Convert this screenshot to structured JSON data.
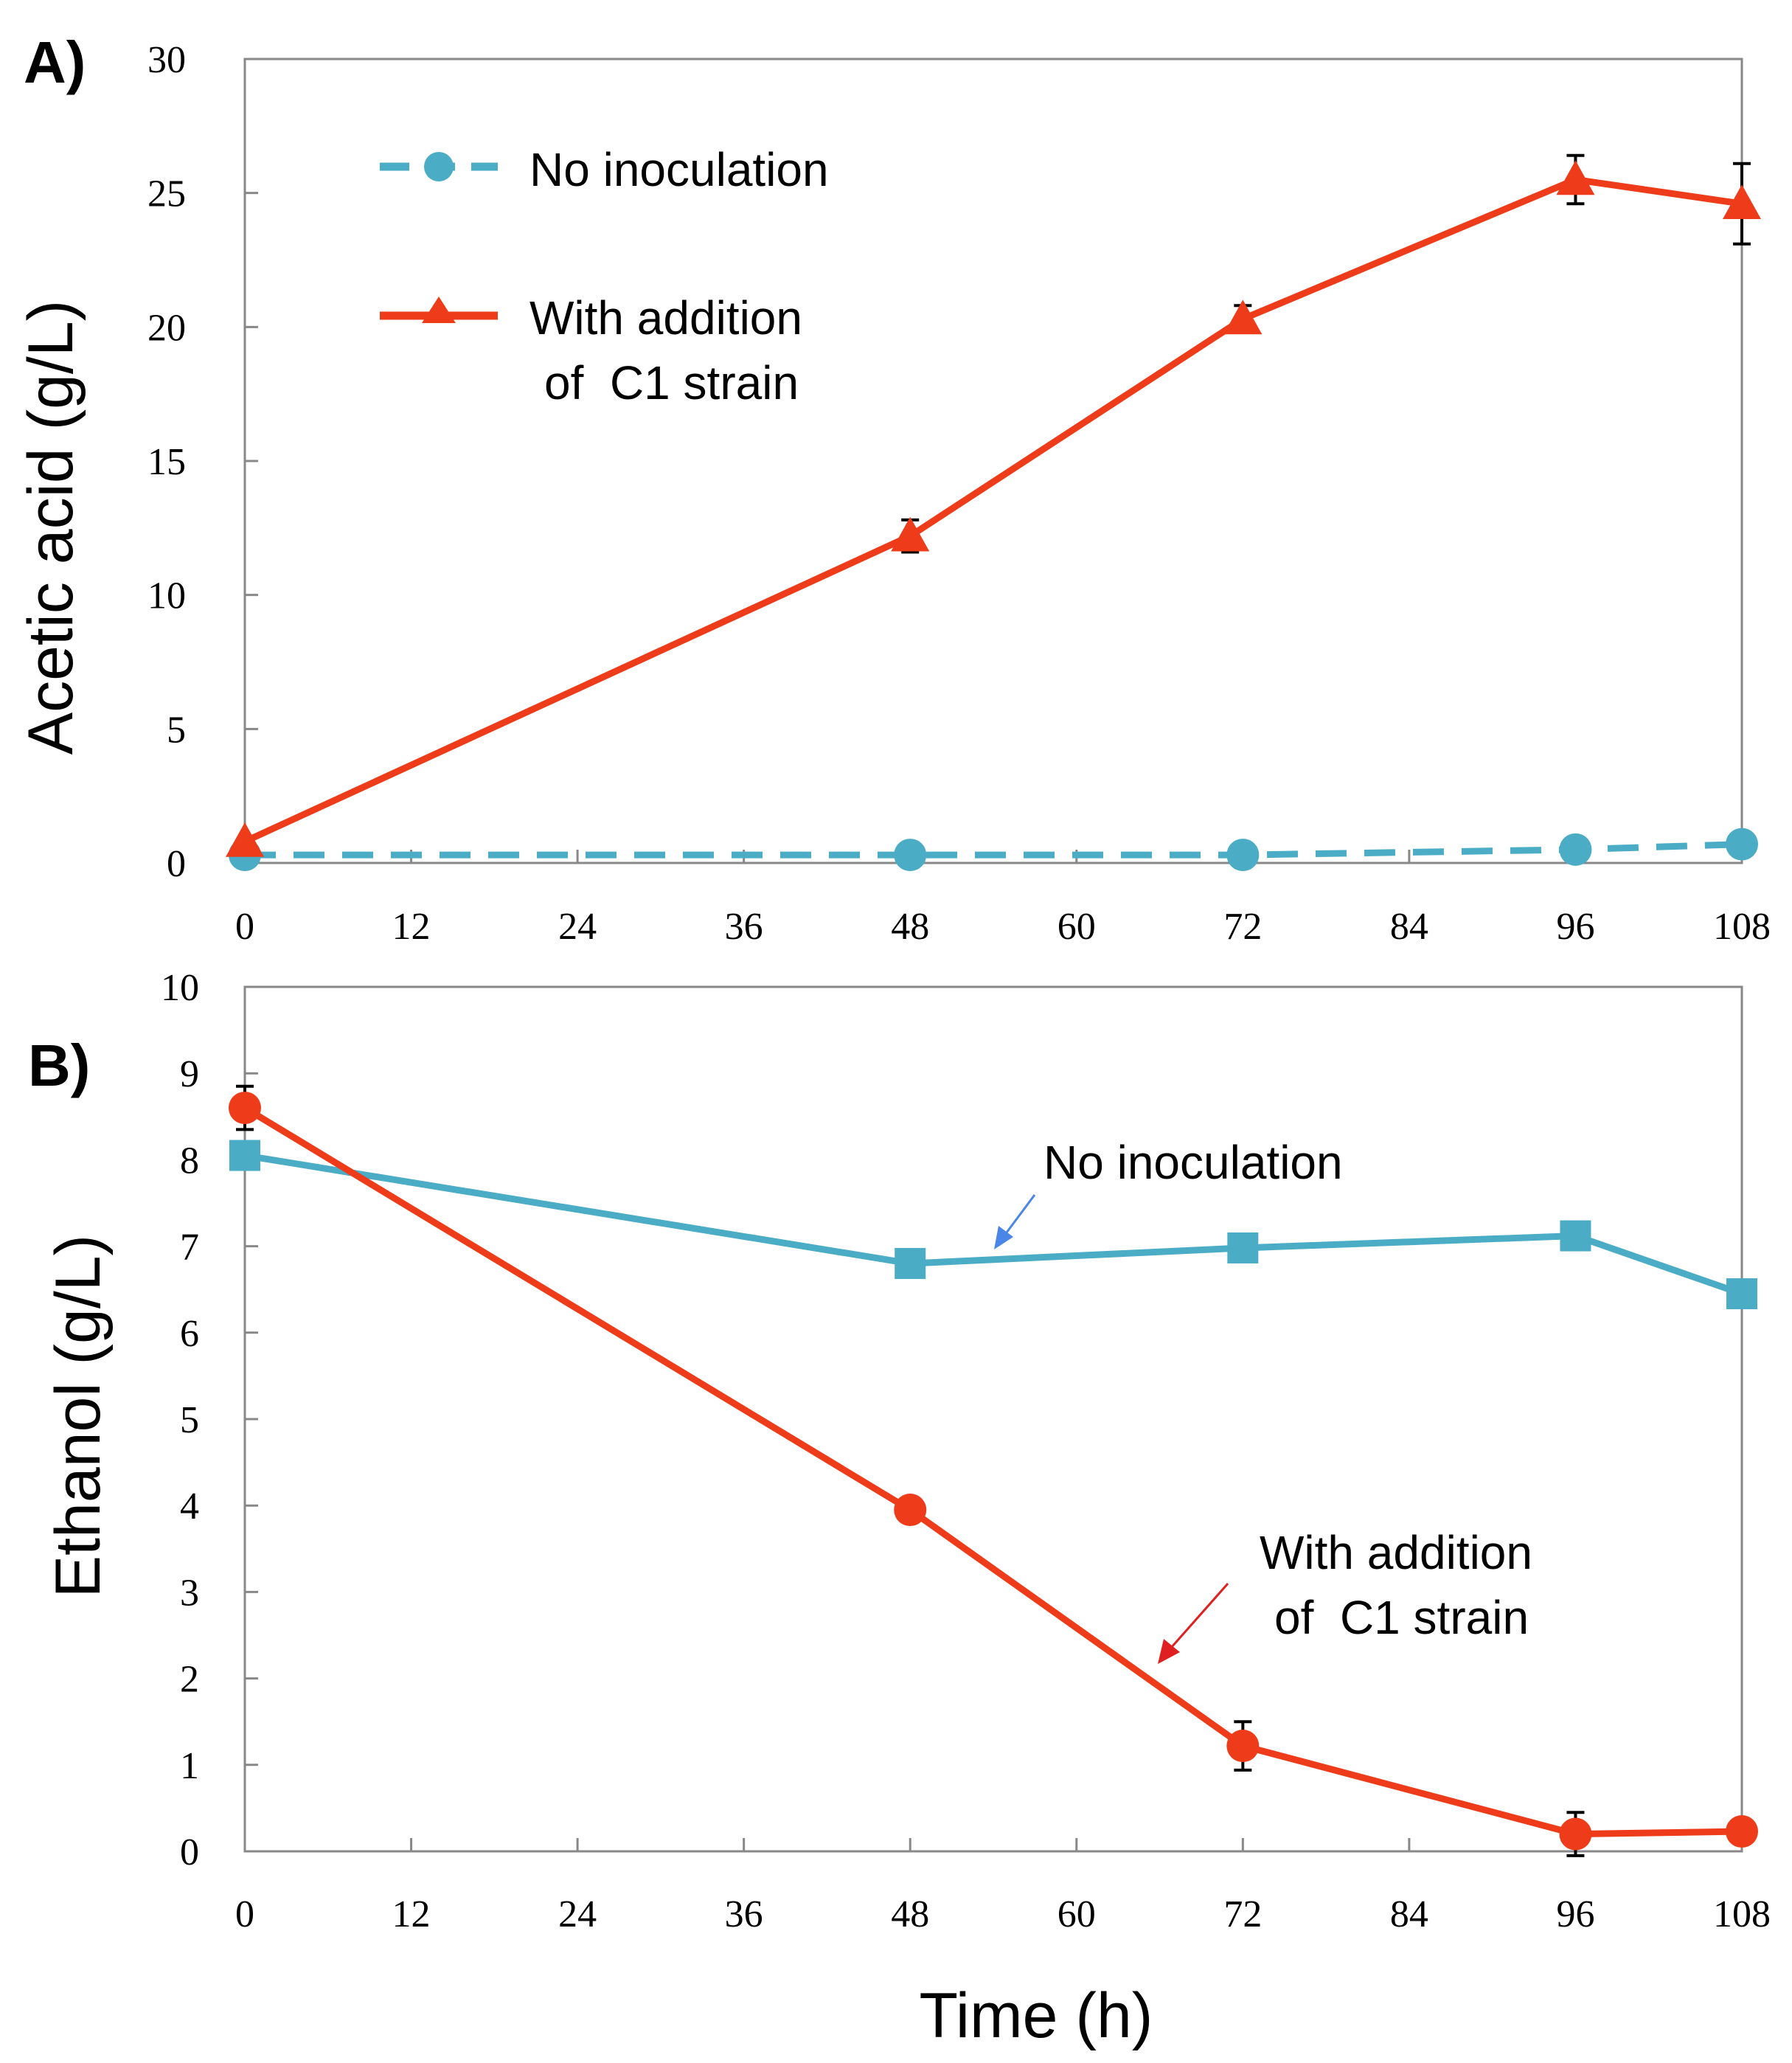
{
  "chart_data": [
    {
      "type": "line",
      "panel_label": "A)",
      "title": "",
      "xlabel": "",
      "ylabel": "Acetic acid (g/L)",
      "x": [
        0,
        48,
        72,
        96,
        108
      ],
      "xticks": [
        "0",
        "12",
        "24",
        "36",
        "48",
        "60",
        "72",
        "84",
        "96",
        "108"
      ],
      "yticks": [
        "0",
        "5",
        "10",
        "15",
        "20",
        "25",
        "30"
      ],
      "xlim": [
        0,
        108
      ],
      "ylim": [
        0,
        30
      ],
      "grid": false,
      "legend_position": "top-left",
      "series": [
        {
          "name": "No inoculation",
          "legend_label": "No inoculation",
          "color": "#4bacc6",
          "line_style": "dashed",
          "marker": "circle",
          "values": [
            0.3,
            0.3,
            0.3,
            0.5,
            0.7
          ],
          "errors": [
            0,
            0,
            0,
            0,
            0
          ]
        },
        {
          "name": "With addition of C1 strain",
          "legend_label_lines": [
            "With addition",
            "of  C1 strain"
          ],
          "color": "#ee3c1a",
          "line_style": "solid",
          "marker": "triangle",
          "values": [
            0.8,
            12.2,
            20.3,
            25.5,
            24.6
          ],
          "errors": [
            0,
            0.6,
            0.5,
            0.9,
            1.5
          ]
        }
      ]
    },
    {
      "type": "line",
      "panel_label": "B)",
      "title": "",
      "xlabel": "Time (h)",
      "ylabel": "Ethanol (g/L)",
      "x": [
        0,
        48,
        72,
        96,
        108
      ],
      "xticks": [
        "0",
        "12",
        "24",
        "36",
        "48",
        "60",
        "72",
        "84",
        "96",
        "108"
      ],
      "yticks": [
        "0",
        "1",
        "2",
        "3",
        "4",
        "5",
        "6",
        "7",
        "8",
        "9",
        "10"
      ],
      "xlim": [
        0,
        108
      ],
      "ylim": [
        0,
        10
      ],
      "grid": false,
      "series": [
        {
          "name": "No inoculation",
          "annotation_lines": [
            "No inoculation"
          ],
          "arrow_color": "#4a86e8",
          "color": "#4bacc6",
          "line_style": "solid",
          "marker": "square",
          "values": [
            8.05,
            6.8,
            6.98,
            7.12,
            6.45
          ],
          "errors": [
            0,
            0,
            0,
            0,
            0
          ]
        },
        {
          "name": "With addition of C1 strain",
          "annotation_lines": [
            "With addition",
            "of  C1 strain"
          ],
          "arrow_color": "#e02020",
          "color": "#ee3c1a",
          "line_style": "solid",
          "marker": "circle",
          "values": [
            8.6,
            3.95,
            1.22,
            0.2,
            0.23
          ],
          "errors": [
            0.25,
            0,
            0.28,
            0.25,
            0
          ]
        }
      ]
    }
  ]
}
